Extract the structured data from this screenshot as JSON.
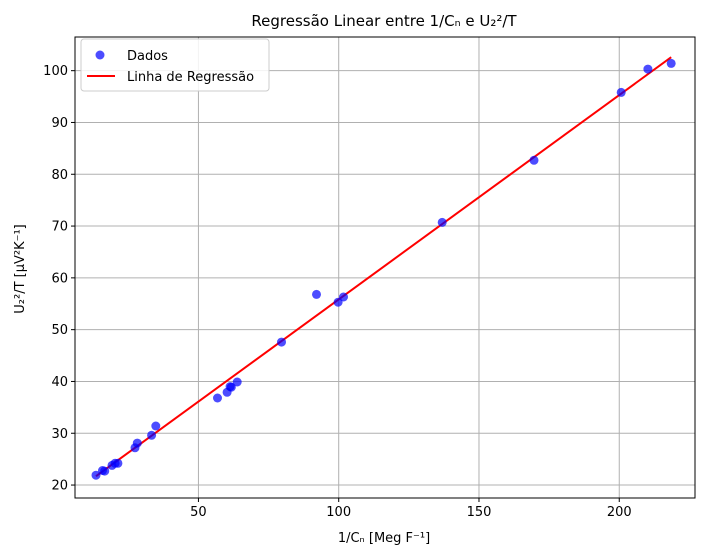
{
  "chart_data": {
    "type": "scatter",
    "title": "Regressão Linear entre 1/Cₙ e U₂²/T",
    "xlabel": "1/Cₙ [Meg F⁻¹]",
    "ylabel": "U₂²/T [μV²K⁻¹]",
    "xlim": [
      6,
      227
    ],
    "ylim": [
      17.5,
      106.5
    ],
    "xticks": [
      50,
      100,
      150,
      200
    ],
    "yticks": [
      20,
      30,
      40,
      50,
      60,
      70,
      80,
      90,
      100
    ],
    "grid": true,
    "legend_position": "top-left",
    "series": [
      {
        "name": "Dados",
        "kind": "scatter",
        "color": "#0000ff",
        "x": [
          13.5,
          15.8,
          16.6,
          19.2,
          20.3,
          21.3,
          27.4,
          28.2,
          33.3,
          34.8,
          56.8,
          60.2,
          61.3,
          61.7,
          63.8,
          79.6,
          92.1,
          99.8,
          101.7,
          136.9,
          169.6,
          200.7,
          210.2,
          218.5
        ],
        "y": [
          21.9,
          22.8,
          22.7,
          23.8,
          24.2,
          24.2,
          27.2,
          28.1,
          29.6,
          31.4,
          36.8,
          37.9,
          39.0,
          38.9,
          39.9,
          47.6,
          56.8,
          55.3,
          56.3,
          70.7,
          82.7,
          95.8,
          100.3,
          101.4
        ]
      },
      {
        "name": "Linha de Regressão",
        "kind": "line",
        "color": "#ff0000",
        "x": [
          13.5,
          218.5
        ],
        "y": [
          21.7,
          102.6
        ]
      }
    ]
  }
}
